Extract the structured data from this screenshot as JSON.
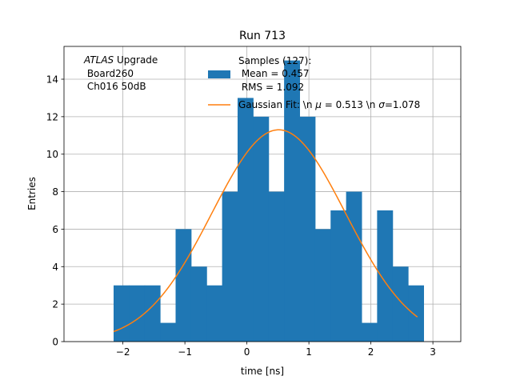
{
  "chart_data": {
    "type": "bar",
    "title": "Run 713",
    "xlabel": "time [ns]",
    "ylabel": "Entries",
    "xlim": [
      -2.95,
      3.45
    ],
    "ylim": [
      0,
      15.75
    ],
    "xticks": [
      -2,
      -1,
      0,
      1,
      2,
      3
    ],
    "yticks": [
      0,
      2,
      4,
      6,
      8,
      10,
      12,
      14
    ],
    "grid": true,
    "bar_color": "#1f77b4",
    "fit_color": "#ff7f0e",
    "annotation": {
      "atlas": "ATLAS",
      "upgrade": " Upgrade",
      "line2": " Board260",
      "line3": " Ch016 50dB"
    },
    "legend": {
      "placement": "top-right",
      "hist_lines": [
        "Samples (127):",
        " Mean = 0.457",
        " RMS = 1.092"
      ],
      "fit_prefix": "Gaussian Fit: \\n ",
      "mu_symbol": "μ",
      "mu_text": " = 0.513 \\n ",
      "sigma_symbol": "σ",
      "sigma_text": "=1.078"
    },
    "series": [
      {
        "type": "histogram",
        "bin_edges": [
          -2.15,
          -1.9,
          -1.65,
          -1.4,
          -1.15,
          -0.9,
          -0.65,
          -0.4,
          -0.15,
          0.1,
          0.35,
          0.6,
          0.85,
          1.1,
          1.35,
          1.6,
          1.85,
          2.1,
          2.35,
          2.6,
          2.85
        ],
        "counts": [
          3,
          3,
          3,
          1,
          6,
          4,
          3,
          8,
          13,
          12,
          8,
          15,
          12,
          6,
          7,
          8,
          1,
          7,
          4,
          3
        ]
      },
      {
        "type": "gaussian-fit",
        "amplitude": 11.3,
        "mu": 0.513,
        "sigma": 1.078,
        "x_range": [
          -2.15,
          2.75
        ]
      }
    ]
  }
}
